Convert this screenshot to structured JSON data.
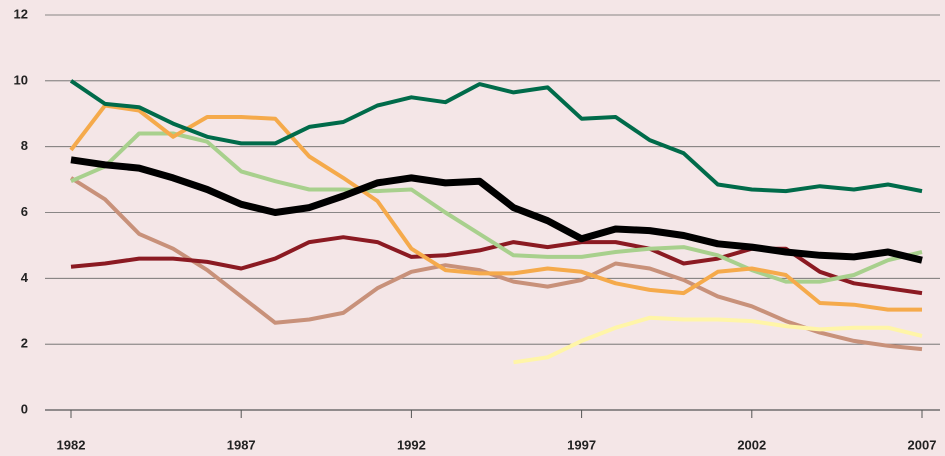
{
  "chart_data": {
    "type": "line",
    "x": [
      1982,
      1983,
      1984,
      1985,
      1986,
      1987,
      1988,
      1989,
      1990,
      1991,
      1992,
      1993,
      1994,
      1995,
      1996,
      1997,
      1998,
      1999,
      2000,
      2001,
      2002,
      2003,
      2004,
      2005,
      2006,
      2007
    ],
    "xlim": [
      1982,
      2007
    ],
    "xticks": [
      1982,
      1987,
      1992,
      1997,
      2002,
      2007
    ],
    "ylim": [
      0,
      12
    ],
    "yticks": [
      0,
      2,
      4,
      6,
      8,
      10,
      12
    ],
    "grid": true,
    "series": [
      {
        "color": "#c8917a",
        "width": 4,
        "values": [
          7.05,
          6.4,
          5.35,
          4.9,
          4.25,
          3.45,
          2.65,
          2.75,
          2.95,
          3.7,
          4.2,
          4.4,
          4.25,
          3.9,
          3.75,
          3.95,
          4.45,
          4.3,
          3.95,
          3.45,
          3.15,
          2.7,
          2.35,
          2.1,
          1.95,
          1.85
        ]
      },
      {
        "color": "#8b1a22",
        "width": 4,
        "values": [
          4.35,
          4.45,
          4.6,
          4.6,
          4.5,
          4.3,
          4.6,
          5.1,
          5.25,
          5.1,
          4.65,
          4.7,
          4.85,
          5.1,
          4.95,
          5.1,
          5.1,
          4.9,
          4.45,
          4.6,
          4.9,
          4.9,
          4.2,
          3.85,
          3.7,
          3.55
        ]
      },
      {
        "color": "#a8d08d",
        "width": 4,
        "values": [
          6.95,
          7.4,
          8.4,
          8.4,
          8.15,
          7.25,
          6.95,
          6.7,
          6.7,
          6.65,
          6.7,
          6.0,
          5.35,
          4.7,
          4.65,
          4.65,
          4.8,
          4.9,
          4.95,
          4.7,
          4.25,
          3.9,
          3.9,
          4.1,
          4.55,
          4.8
        ]
      },
      {
        "color": "#f5aa4b",
        "width": 4,
        "values": [
          7.9,
          9.25,
          9.1,
          8.3,
          8.9,
          8.9,
          8.85,
          7.7,
          7.05,
          6.35,
          4.9,
          4.25,
          4.15,
          4.15,
          4.3,
          4.2,
          3.85,
          3.65,
          3.55,
          4.2,
          4.3,
          4.1,
          3.25,
          3.2,
          3.05,
          3.05
        ]
      },
      {
        "color": "#006b4a",
        "width": 4,
        "values": [
          10.0,
          9.3,
          9.2,
          8.7,
          8.3,
          8.1,
          8.1,
          8.6,
          8.75,
          9.25,
          9.5,
          9.35,
          9.9,
          9.65,
          9.8,
          8.85,
          8.9,
          8.2,
          7.8,
          6.85,
          6.7,
          6.65,
          6.8,
          6.7,
          6.85,
          6.65
        ]
      },
      {
        "color": "#fff5a8",
        "width": 4,
        "values": [
          null,
          null,
          null,
          null,
          null,
          null,
          null,
          null,
          null,
          null,
          null,
          null,
          null,
          1.45,
          1.6,
          2.1,
          2.5,
          2.8,
          2.75,
          2.75,
          2.7,
          2.55,
          2.45,
          2.5,
          2.5,
          2.25
        ]
      },
      {
        "color": "#000000",
        "width": 7,
        "values": [
          7.6,
          7.45,
          7.35,
          7.05,
          6.7,
          6.25,
          6.0,
          6.15,
          6.5,
          6.9,
          7.05,
          6.9,
          6.95,
          6.15,
          5.75,
          5.2,
          5.5,
          5.45,
          5.3,
          5.05,
          4.95,
          4.8,
          4.7,
          4.65,
          4.8,
          4.55
        ]
      }
    ]
  }
}
